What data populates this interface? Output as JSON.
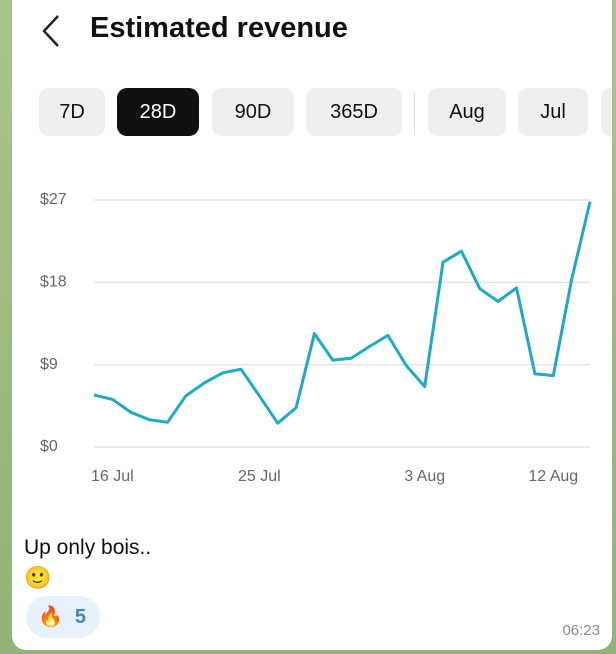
{
  "header": {
    "title": "Estimated revenue"
  },
  "tabs": [
    "7D",
    "28D",
    "90D",
    "365D",
    "Aug",
    "Jul"
  ],
  "chart_data": {
    "type": "line",
    "categories": [
      null,
      "16 Jul",
      null,
      null,
      null,
      null,
      null,
      null,
      null,
      "25 Jul",
      null,
      null,
      null,
      null,
      null,
      null,
      null,
      null,
      "3 Aug",
      null,
      null,
      null,
      null,
      null,
      null,
      "12 Aug",
      null,
      null
    ],
    "series": [
      {
        "name": "Estimated revenue",
        "color": "#1fa8c9",
        "values": [
          5.7,
          5.2,
          3.8,
          3.0,
          2.7,
          5.6,
          7.0,
          8.1,
          8.5,
          5.6,
          2.6,
          4.3,
          12.4,
          9.5,
          9.7,
          11.0,
          12.2,
          8.9,
          6.6,
          20.2,
          21.4,
          17.3,
          15.9,
          17.4,
          8.0,
          7.8,
          18.3,
          26.8
        ]
      }
    ],
    "ylim": [
      0,
      27
    ],
    "yticks": [
      {
        "value": 0,
        "label": "$0"
      },
      {
        "value": 9,
        "label": "$9"
      },
      {
        "value": 18,
        "label": "$18"
      },
      {
        "value": 27,
        "label": "$27"
      }
    ],
    "grid": true
  },
  "message": {
    "text": "Up only bois..",
    "emoji": "🙂",
    "reaction": {
      "emoji": "🔥",
      "count": 5
    },
    "time": "06:23"
  }
}
